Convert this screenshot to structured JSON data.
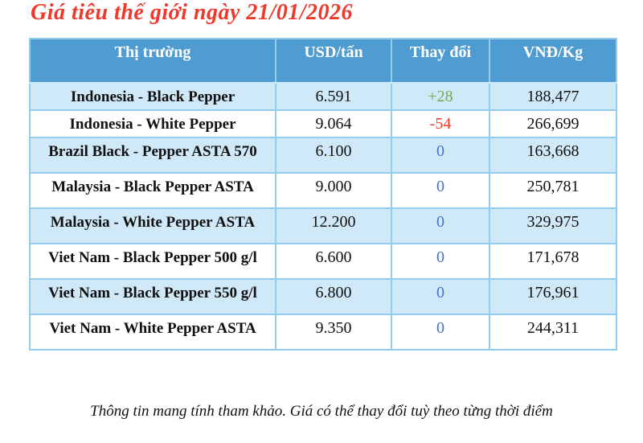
{
  "title": "Giá tiêu thế giới ngày 21/01/2026",
  "footnote": "Thông tin mang tính tham khảo. Giá có thể thay đổi tuỳ theo từng thời điểm",
  "colors": {
    "header_bg": "#4f9cd2",
    "band_row_bg": "#cfe9f8",
    "plain_row_bg": "#ffffff",
    "border": "#92cdec",
    "title_red": "#ee392c",
    "change_up_green": "#7ca74f",
    "change_down_red": "#f23526",
    "change_zero_blue": "#4472c4"
  },
  "table": {
    "headers": [
      "Thị trường",
      "USD/tấn",
      "Thay đổi",
      "VNĐ/Kg"
    ],
    "rows": [
      {
        "market": "Indonesia - Black Pepper",
        "usd": "6.591",
        "change": "+28",
        "change_dir": "up",
        "vnd": "188,477"
      },
      {
        "market": "Indonesia - White Pepper",
        "usd": "9.064",
        "change": "-54",
        "change_dir": "down",
        "vnd": "266,699"
      },
      {
        "market": "Brazil Black - Pepper ASTA 570",
        "usd": "6.100",
        "change": "0",
        "change_dir": "zero",
        "vnd": "163,668"
      },
      {
        "market": "Malaysia - Black Pepper ASTA",
        "usd": "9.000",
        "change": "0",
        "change_dir": "zero",
        "vnd": "250,781"
      },
      {
        "market": "Malaysia - White Pepper ASTA",
        "usd": "12.200",
        "change": "0",
        "change_dir": "zero",
        "vnd": "329,975"
      },
      {
        "market": "Viet Nam - Black Pepper 500 g/l",
        "usd": "6.600",
        "change": "0",
        "change_dir": "zero",
        "vnd": "171,678"
      },
      {
        "market": "Viet Nam - Black Pepper 550 g/l",
        "usd": "6.800",
        "change": "0",
        "change_dir": "zero",
        "vnd": "176,961"
      },
      {
        "market": "Viet Nam - White Pepper ASTA",
        "usd": "9.350",
        "change": "0",
        "change_dir": "zero",
        "vnd": "244,311"
      }
    ]
  },
  "chart_data": {
    "type": "table",
    "title": "Giá tiêu thế giới ngày 21/01/2026",
    "columns": [
      "Thị trường",
      "USD/tấn",
      "Thay đổi",
      "VNĐ/Kg"
    ],
    "rows": [
      [
        "Indonesia - Black Pepper",
        "6.591",
        "+28",
        "188,477"
      ],
      [
        "Indonesia - White Pepper",
        "9.064",
        "-54",
        "266,699"
      ],
      [
        "Brazil Black - Pepper ASTA 570",
        "6.100",
        "0",
        "163,668"
      ],
      [
        "Malaysia - Black Pepper ASTA",
        "9.000",
        "0",
        "250,781"
      ],
      [
        "Malaysia - White Pepper ASTA",
        "12.200",
        "0",
        "329,975"
      ],
      [
        "Viet Nam - Black Pepper 500 g/l",
        "6.600",
        "0",
        "171,678"
      ],
      [
        "Viet Nam - Black Pepper 550 g/l",
        "6.800",
        "0",
        "176,961"
      ],
      [
        "Viet Nam - White Pepper ASTA",
        "9.350",
        "0",
        "244,311"
      ]
    ],
    "usd_per_ton_values": [
      6591,
      9064,
      6100,
      9000,
      12200,
      6600,
      6800,
      9350
    ],
    "change_values": [
      28,
      -54,
      0,
      0,
      0,
      0,
      0,
      0
    ],
    "vnd_per_kg_values": [
      188477,
      266699,
      163668,
      250781,
      329975,
      171678,
      176961,
      244311
    ]
  }
}
